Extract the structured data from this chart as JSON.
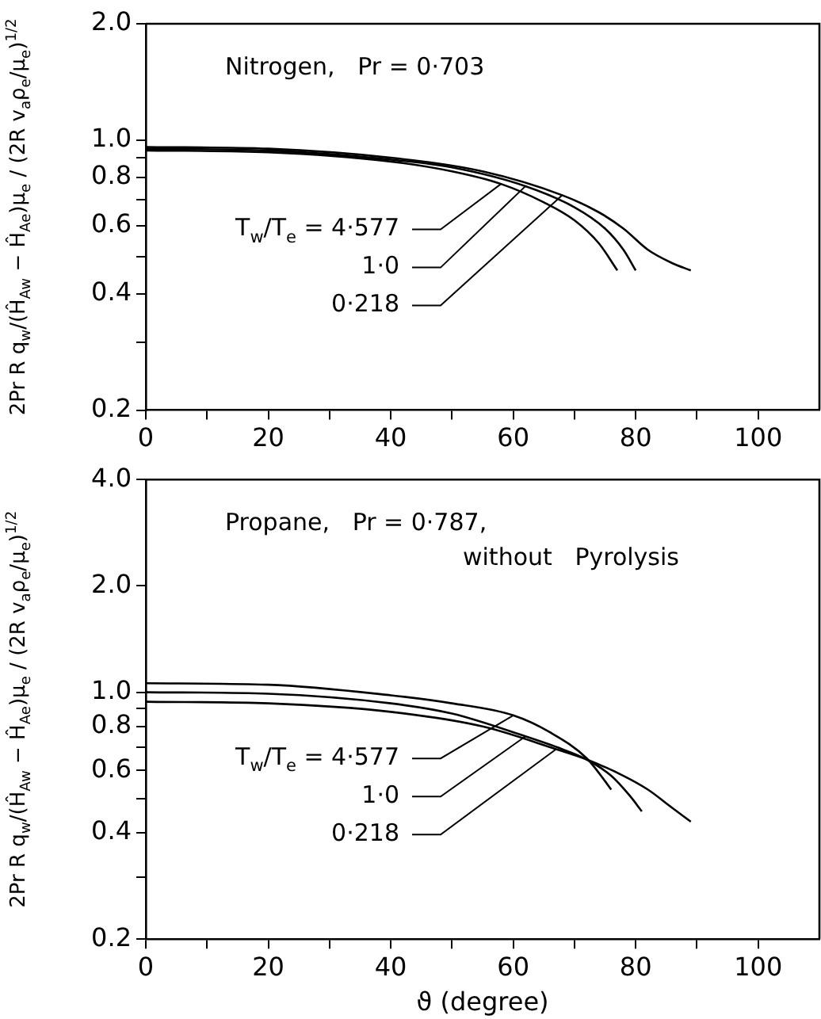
{
  "chart_data": [
    {
      "type": "line",
      "annotations": [
        "Nitrogen,   Pr = 0·703"
      ],
      "ylabel": "2Pr R q$_{w}$/(Ĥ$_{Aw}$ − Ĥ$_{Ae}$)μ$_{e}$ / (2R v$_{a}$ρ$_{e}$/μ$_{e}$)$^{1/2}$",
      "xlim": [
        0,
        110
      ],
      "xticks": [
        0,
        {
          "value": 10,
          "label": null
        },
        20,
        {
          "value": 30,
          "label": null
        },
        40,
        {
          "value": 50,
          "label": null
        },
        60,
        {
          "value": 70,
          "label": null
        },
        80,
        {
          "value": 90,
          "label": null
        },
        100
      ],
      "ylim": [
        0.2,
        2
      ],
      "yticks": [
        {
          "value": 2,
          "label": "2.0"
        },
        {
          "value": 1,
          "label": "1.0"
        },
        {
          "value": 0.9,
          "label": null
        },
        {
          "value": 0.8,
          "label": "0.8"
        },
        {
          "value": 0.7,
          "label": null
        },
        {
          "value": 0.6,
          "label": "0.6"
        },
        {
          "value": 0.5,
          "label": null
        },
        {
          "value": 0.4,
          "label": "0.4"
        },
        {
          "value": 0.3,
          "label": null
        },
        {
          "value": 0.2,
          "label": "0.2"
        }
      ],
      "log": "y",
      "grid": false,
      "legend": false,
      "marker": "none",
      "line_style": "solid",
      "series": [
        {
          "name": "T$_{w}$/T$_{e}$ = 4·577",
          "color": "#000000",
          "x": [
            0,
            20,
            40,
            50,
            58,
            65,
            70,
            74,
            77
          ],
          "values": [
            0.94,
            0.93,
            0.88,
            0.83,
            0.77,
            0.69,
            0.62,
            0.54,
            0.46
          ]
        },
        {
          "name": "1·0",
          "color": "#000000",
          "x": [
            0,
            20,
            40,
            50,
            62,
            70,
            75,
            78,
            80
          ],
          "values": [
            0.95,
            0.94,
            0.89,
            0.85,
            0.76,
            0.67,
            0.59,
            0.52,
            0.46
          ]
        },
        {
          "name": "0·218",
          "color": "#000000",
          "x": [
            0,
            20,
            40,
            55,
            68,
            74,
            78,
            82,
            86,
            89
          ],
          "values": [
            0.96,
            0.95,
            0.9,
            0.83,
            0.72,
            0.65,
            0.59,
            0.52,
            0.48,
            0.46
          ]
        }
      ]
    },
    {
      "type": "line",
      "annotations": [
        "Propane,   Pr = 0·787,",
        "without   Pyrolysis"
      ],
      "xlabel": "ϑ (degree)",
      "ylabel": "2Pr R q$_{w}$/(Ĥ$_{Aw}$ − Ĥ$_{Ae}$)μ$_{e}$ / (2R v$_{a}$ρ$_{e}$/μ$_{e}$)$^{1/2}$",
      "xlim": [
        0,
        110
      ],
      "xticks": [
        0,
        {
          "value": 10,
          "label": null
        },
        20,
        {
          "value": 30,
          "label": null
        },
        40,
        {
          "value": 50,
          "label": null
        },
        60,
        {
          "value": 70,
          "label": null
        },
        80,
        {
          "value": 90,
          "label": null
        },
        100
      ],
      "ylim": [
        0.2,
        4
      ],
      "yticks": [
        {
          "value": 4,
          "label": "4.0"
        },
        {
          "value": 2,
          "label": "2.0"
        },
        {
          "value": 1,
          "label": "1.0"
        },
        {
          "value": 0.9,
          "label": null
        },
        {
          "value": 0.8,
          "label": "0.8"
        },
        {
          "value": 0.7,
          "label": null
        },
        {
          "value": 0.6,
          "label": "0.6"
        },
        {
          "value": 0.5,
          "label": null
        },
        {
          "value": 0.4,
          "label": "0.4"
        },
        {
          "value": 0.3,
          "label": null
        },
        {
          "value": 0.2,
          "label": "0.2"
        }
      ],
      "log": "y",
      "grid": false,
      "legend": false,
      "marker": "none",
      "line_style": "solid",
      "series": [
        {
          "name": "T$_{w}$/T$_{e}$ = 4·577",
          "color": "#000000",
          "x": [
            0,
            20,
            40,
            50,
            60,
            66,
            72,
            75,
            76
          ],
          "values": [
            1.06,
            1.05,
            0.98,
            0.93,
            0.86,
            0.77,
            0.65,
            0.56,
            0.53
          ]
        },
        {
          "name": "1·0",
          "color": "#000000",
          "x": [
            0,
            20,
            40,
            50,
            62,
            68,
            72,
            76,
            79,
            81
          ],
          "values": [
            1.0,
            0.99,
            0.93,
            0.87,
            0.75,
            0.69,
            0.645,
            0.58,
            0.51,
            0.46
          ]
        },
        {
          "name": "0·218",
          "color": "#000000",
          "x": [
            0,
            20,
            40,
            55,
            67,
            72,
            78,
            82,
            86,
            89
          ],
          "values": [
            0.94,
            0.93,
            0.88,
            0.8,
            0.69,
            0.645,
            0.58,
            0.53,
            0.47,
            0.43
          ]
        }
      ]
    }
  ]
}
